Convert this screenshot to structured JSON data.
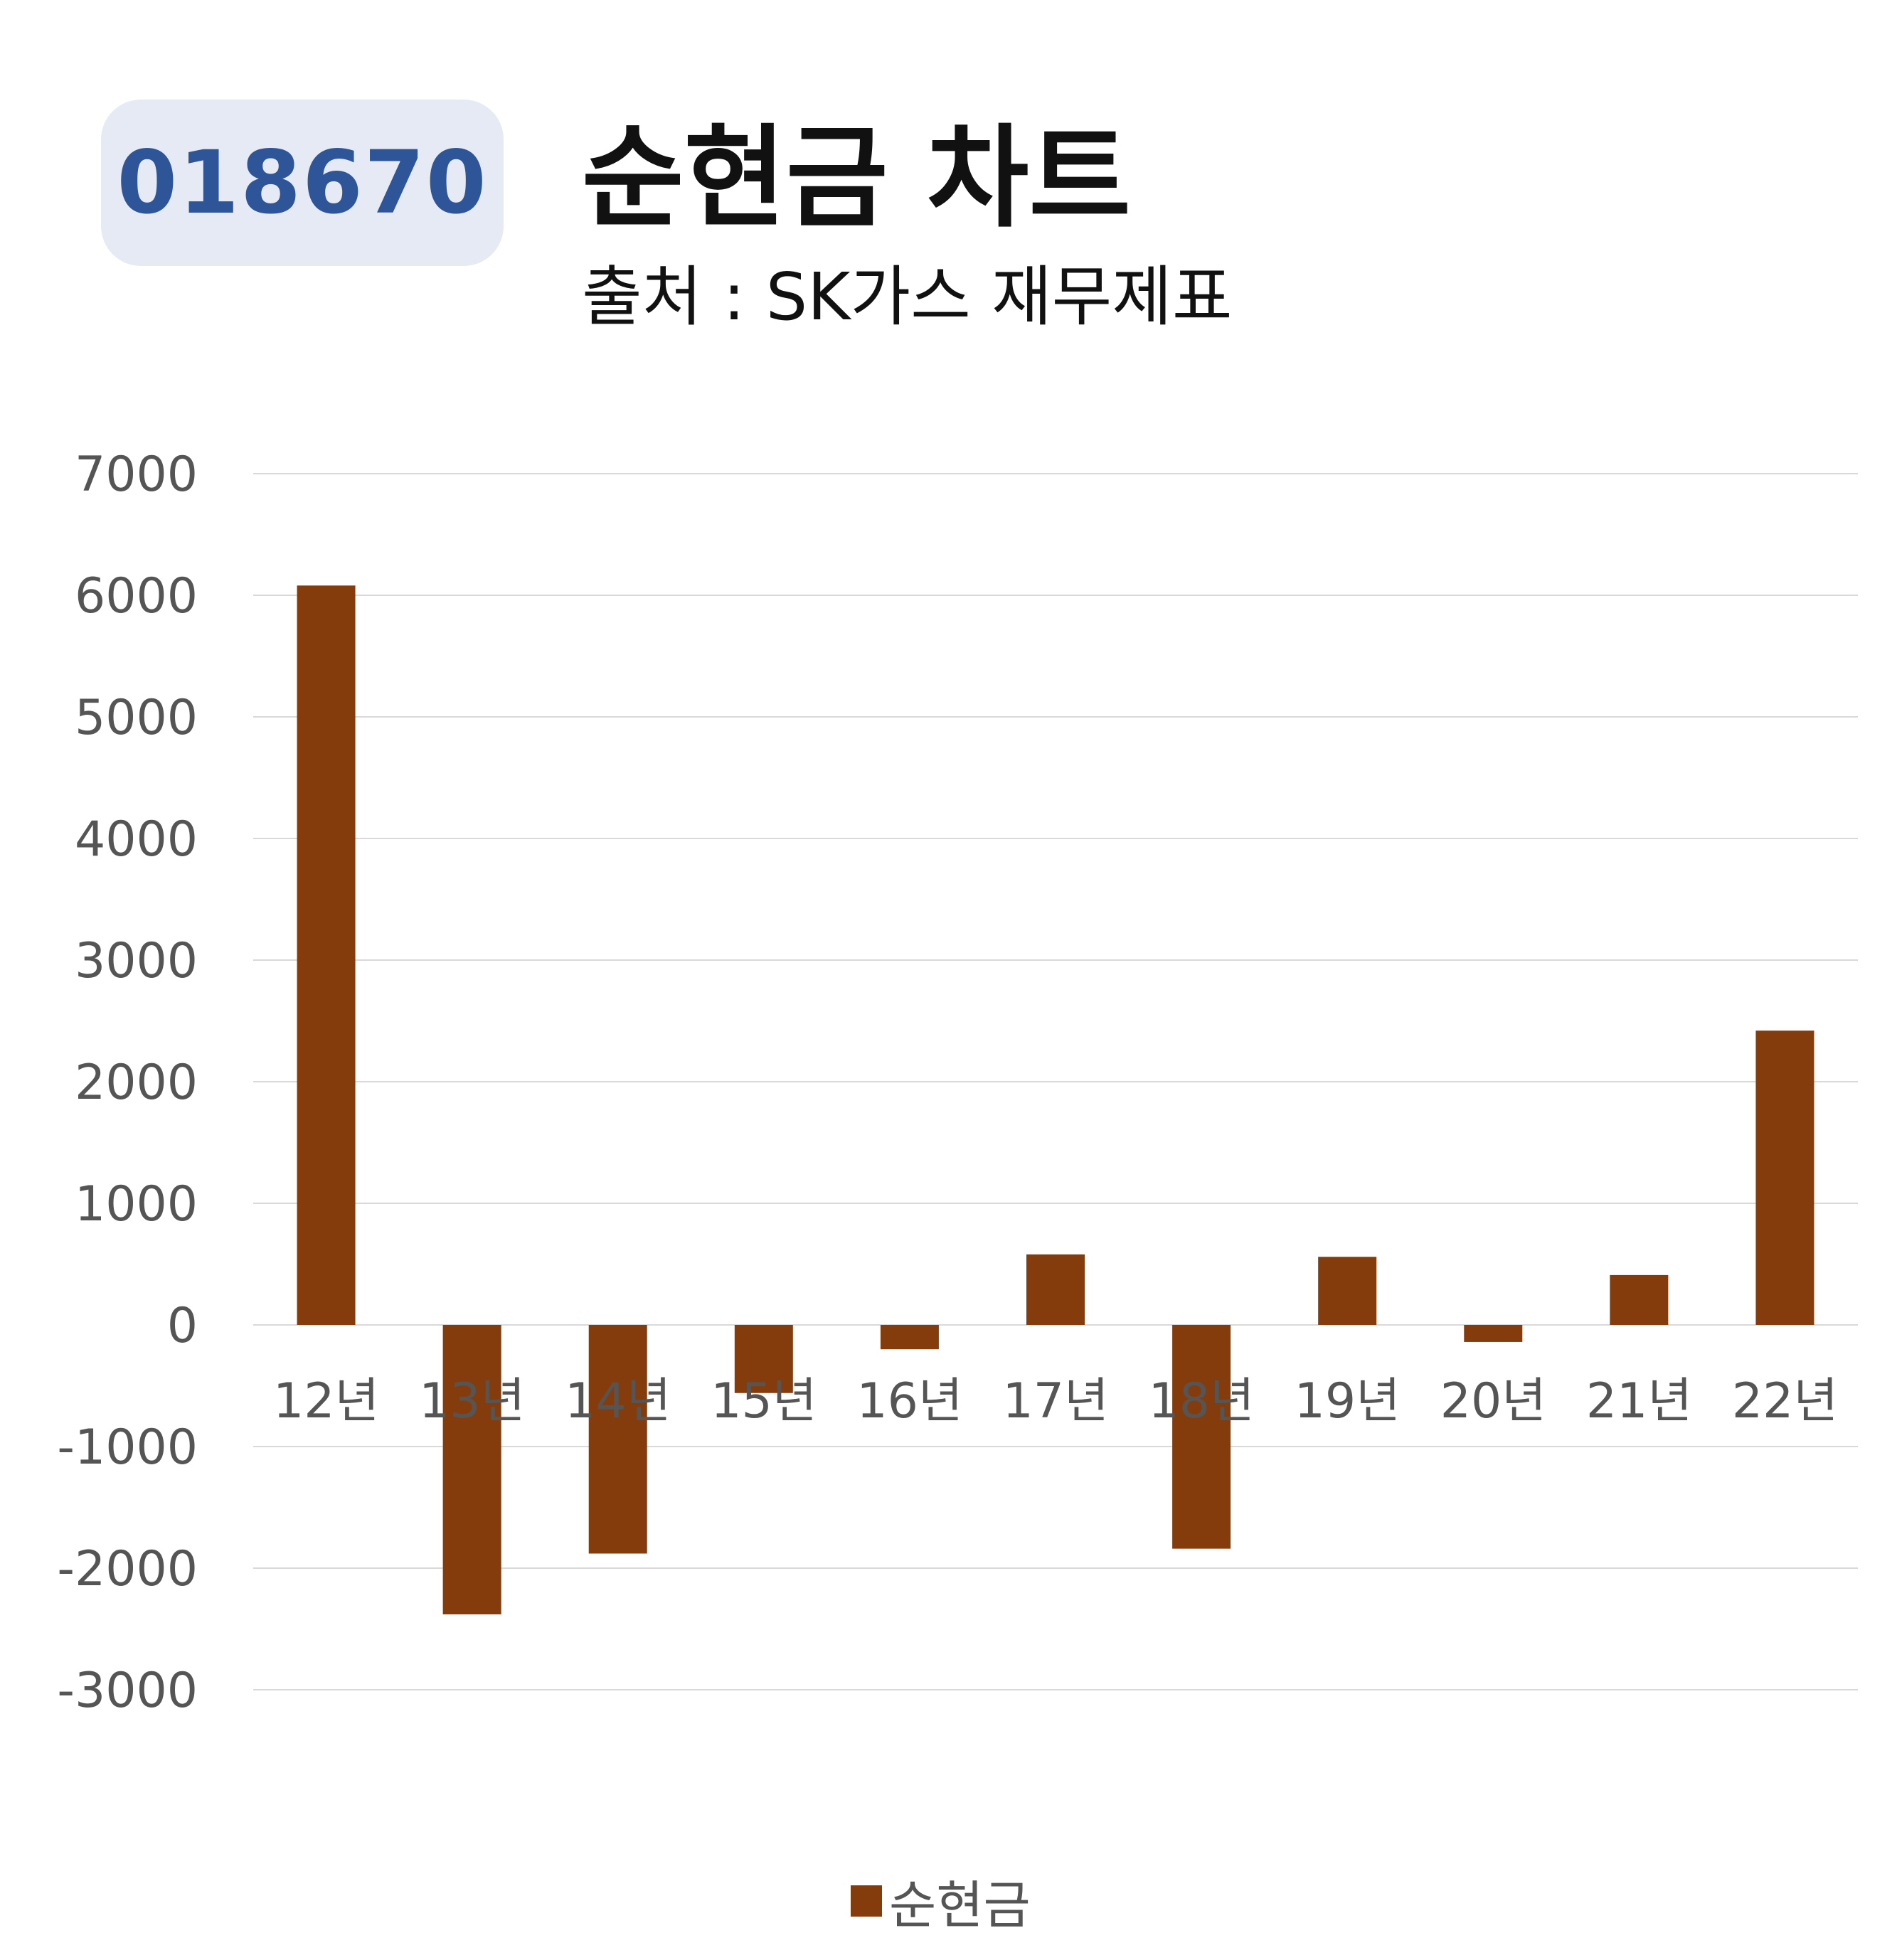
{
  "header": {
    "code": "018670",
    "title": "순현금 차트",
    "subtitle": "출처 : SK가스 재무제표"
  },
  "colors": {
    "bar": "#843c0c",
    "badge_bg": "#e5eaf5",
    "badge_text": "#2d5597",
    "grid": "#d9d9d9",
    "tick_text": "#555555"
  },
  "chart_data": {
    "type": "bar",
    "title": "순현금 차트",
    "subtitle": "출처 : SK가스 재무제표",
    "categories": [
      "12년",
      "13년",
      "14년",
      "15년",
      "16년",
      "17년",
      "18년",
      "19년",
      "20년",
      "21년",
      "22년"
    ],
    "series": [
      {
        "name": "순현금",
        "values": [
          6080,
          -2380,
          -1880,
          -560,
          -200,
          580,
          -1840,
          560,
          -140,
          410,
          2420
        ]
      }
    ],
    "ylim": [
      -3000,
      7000
    ],
    "yticks": [
      7000,
      6000,
      5000,
      4000,
      3000,
      2000,
      1000,
      0,
      -1000,
      -2000,
      -3000
    ],
    "grid": true,
    "legend": "bottom"
  }
}
